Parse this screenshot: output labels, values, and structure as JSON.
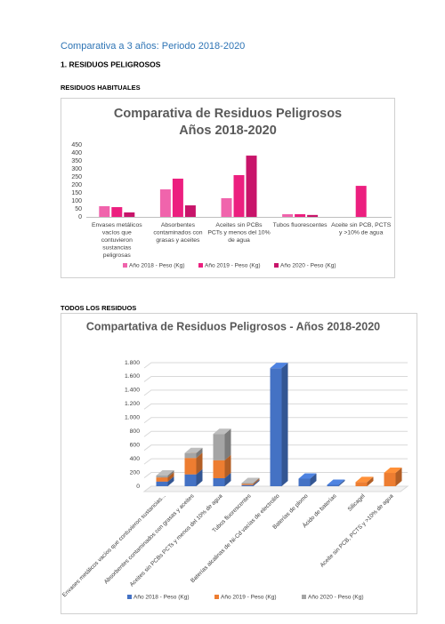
{
  "heading": "Comparativa a 3 años: Periodo 2018-2020",
  "section": "1.  RESIDUOS PELIGROSOS",
  "subsections": [
    "RESIDUOS HABITUALES",
    "TODOS LOS RESIDUOS"
  ],
  "chart_data": [
    {
      "type": "bar",
      "title": "Comparativa de Residuos Peligrosos Años 2018-2020",
      "categories": [
        "Envases  metálicos vacíos que contuvieron sustancias peligrosas",
        "Absorbentes contaminados con grasas y aceites",
        "Aceites sin PCBs PCTs y menos del 10% de agua",
        "Tubos fluorescentes",
        "Aceite sin PCB, PCTS y >10% de agua"
      ],
      "series": [
        {
          "name": "Año 2018 - Peso (Kg)",
          "color": "#f064ac",
          "values": [
            67,
            172,
            117,
            17,
            0
          ]
        },
        {
          "name": "Año 2019 - Peso (Kg)",
          "color": "#ec1f7f",
          "values": [
            61,
            239,
            261,
            17,
            194
          ]
        },
        {
          "name": "Año 2020 - Peso (Kg)",
          "color": "#c8146a",
          "values": [
            28,
            72,
            383,
            12,
            0
          ]
        }
      ],
      "ylim": [
        0,
        450
      ],
      "yticks": [
        0,
        50,
        100,
        150,
        200,
        250,
        300,
        350,
        400,
        450
      ],
      "grid": false,
      "legend": "bottom"
    },
    {
      "type": "stacked-bar-3d",
      "title": "Compartativa de Residuos Peligrosos - Años 2018-2020",
      "categories": [
        "Envases  metálicos vacíos que contuvieron sustancias...",
        "Absorbentes contaminados con grasas y aceites",
        "Aceites sin PCBs PCTs y menos del 10% de agua",
        "Tubos fluorescentes",
        "Baterías alcalinas de Ni-Cd vacías de electrolito",
        "Baterías de plomo",
        "Ácido de baterías",
        "Silicagel",
        "Aceite sin PCB, PCTS y >10% de agua"
      ],
      "series": [
        {
          "name": "Año 2018 - Peso (Kg)",
          "color": "#4472c4",
          "values": [
            67,
            172,
            117,
            17,
            1720,
            110,
            20,
            0,
            0
          ]
        },
        {
          "name": "Año 2019 - Peso (Kg)",
          "color": "#ed7d31",
          "values": [
            61,
            239,
            261,
            17,
            0,
            0,
            0,
            60,
            194
          ]
        },
        {
          "name": "Año 2020 - Peso (Kg)",
          "color": "#a5a5a5",
          "values": [
            28,
            72,
            383,
            12,
            0,
            0,
            0,
            0,
            0
          ]
        }
      ],
      "ylim": [
        0,
        1800
      ],
      "yticks": [
        0,
        200,
        400,
        600,
        800,
        {
          "value": 1000,
          "label": "1.000"
        },
        {
          "value": 1200,
          "label": "1.200"
        },
        {
          "value": 1400,
          "label": "1.400"
        },
        {
          "value": 1600,
          "label": "1.600"
        },
        {
          "value": 1800,
          "label": "1.800"
        }
      ],
      "grid": true,
      "legend": "bottom"
    }
  ]
}
